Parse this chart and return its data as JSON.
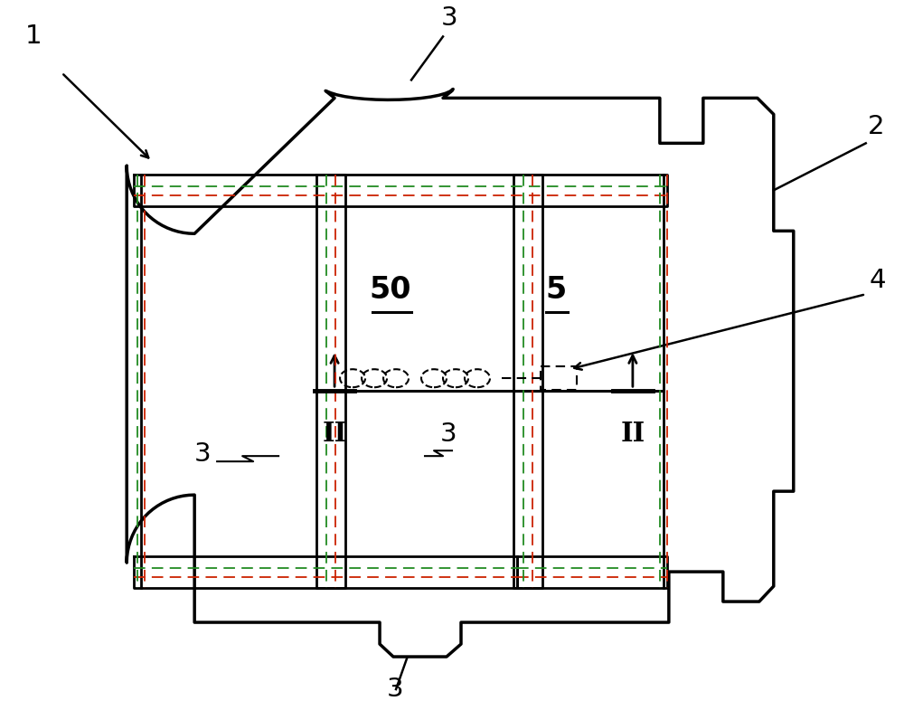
{
  "bg_color": "#ffffff",
  "line_color": "#000000",
  "fig_width": 10.0,
  "fig_height": 7.96
}
